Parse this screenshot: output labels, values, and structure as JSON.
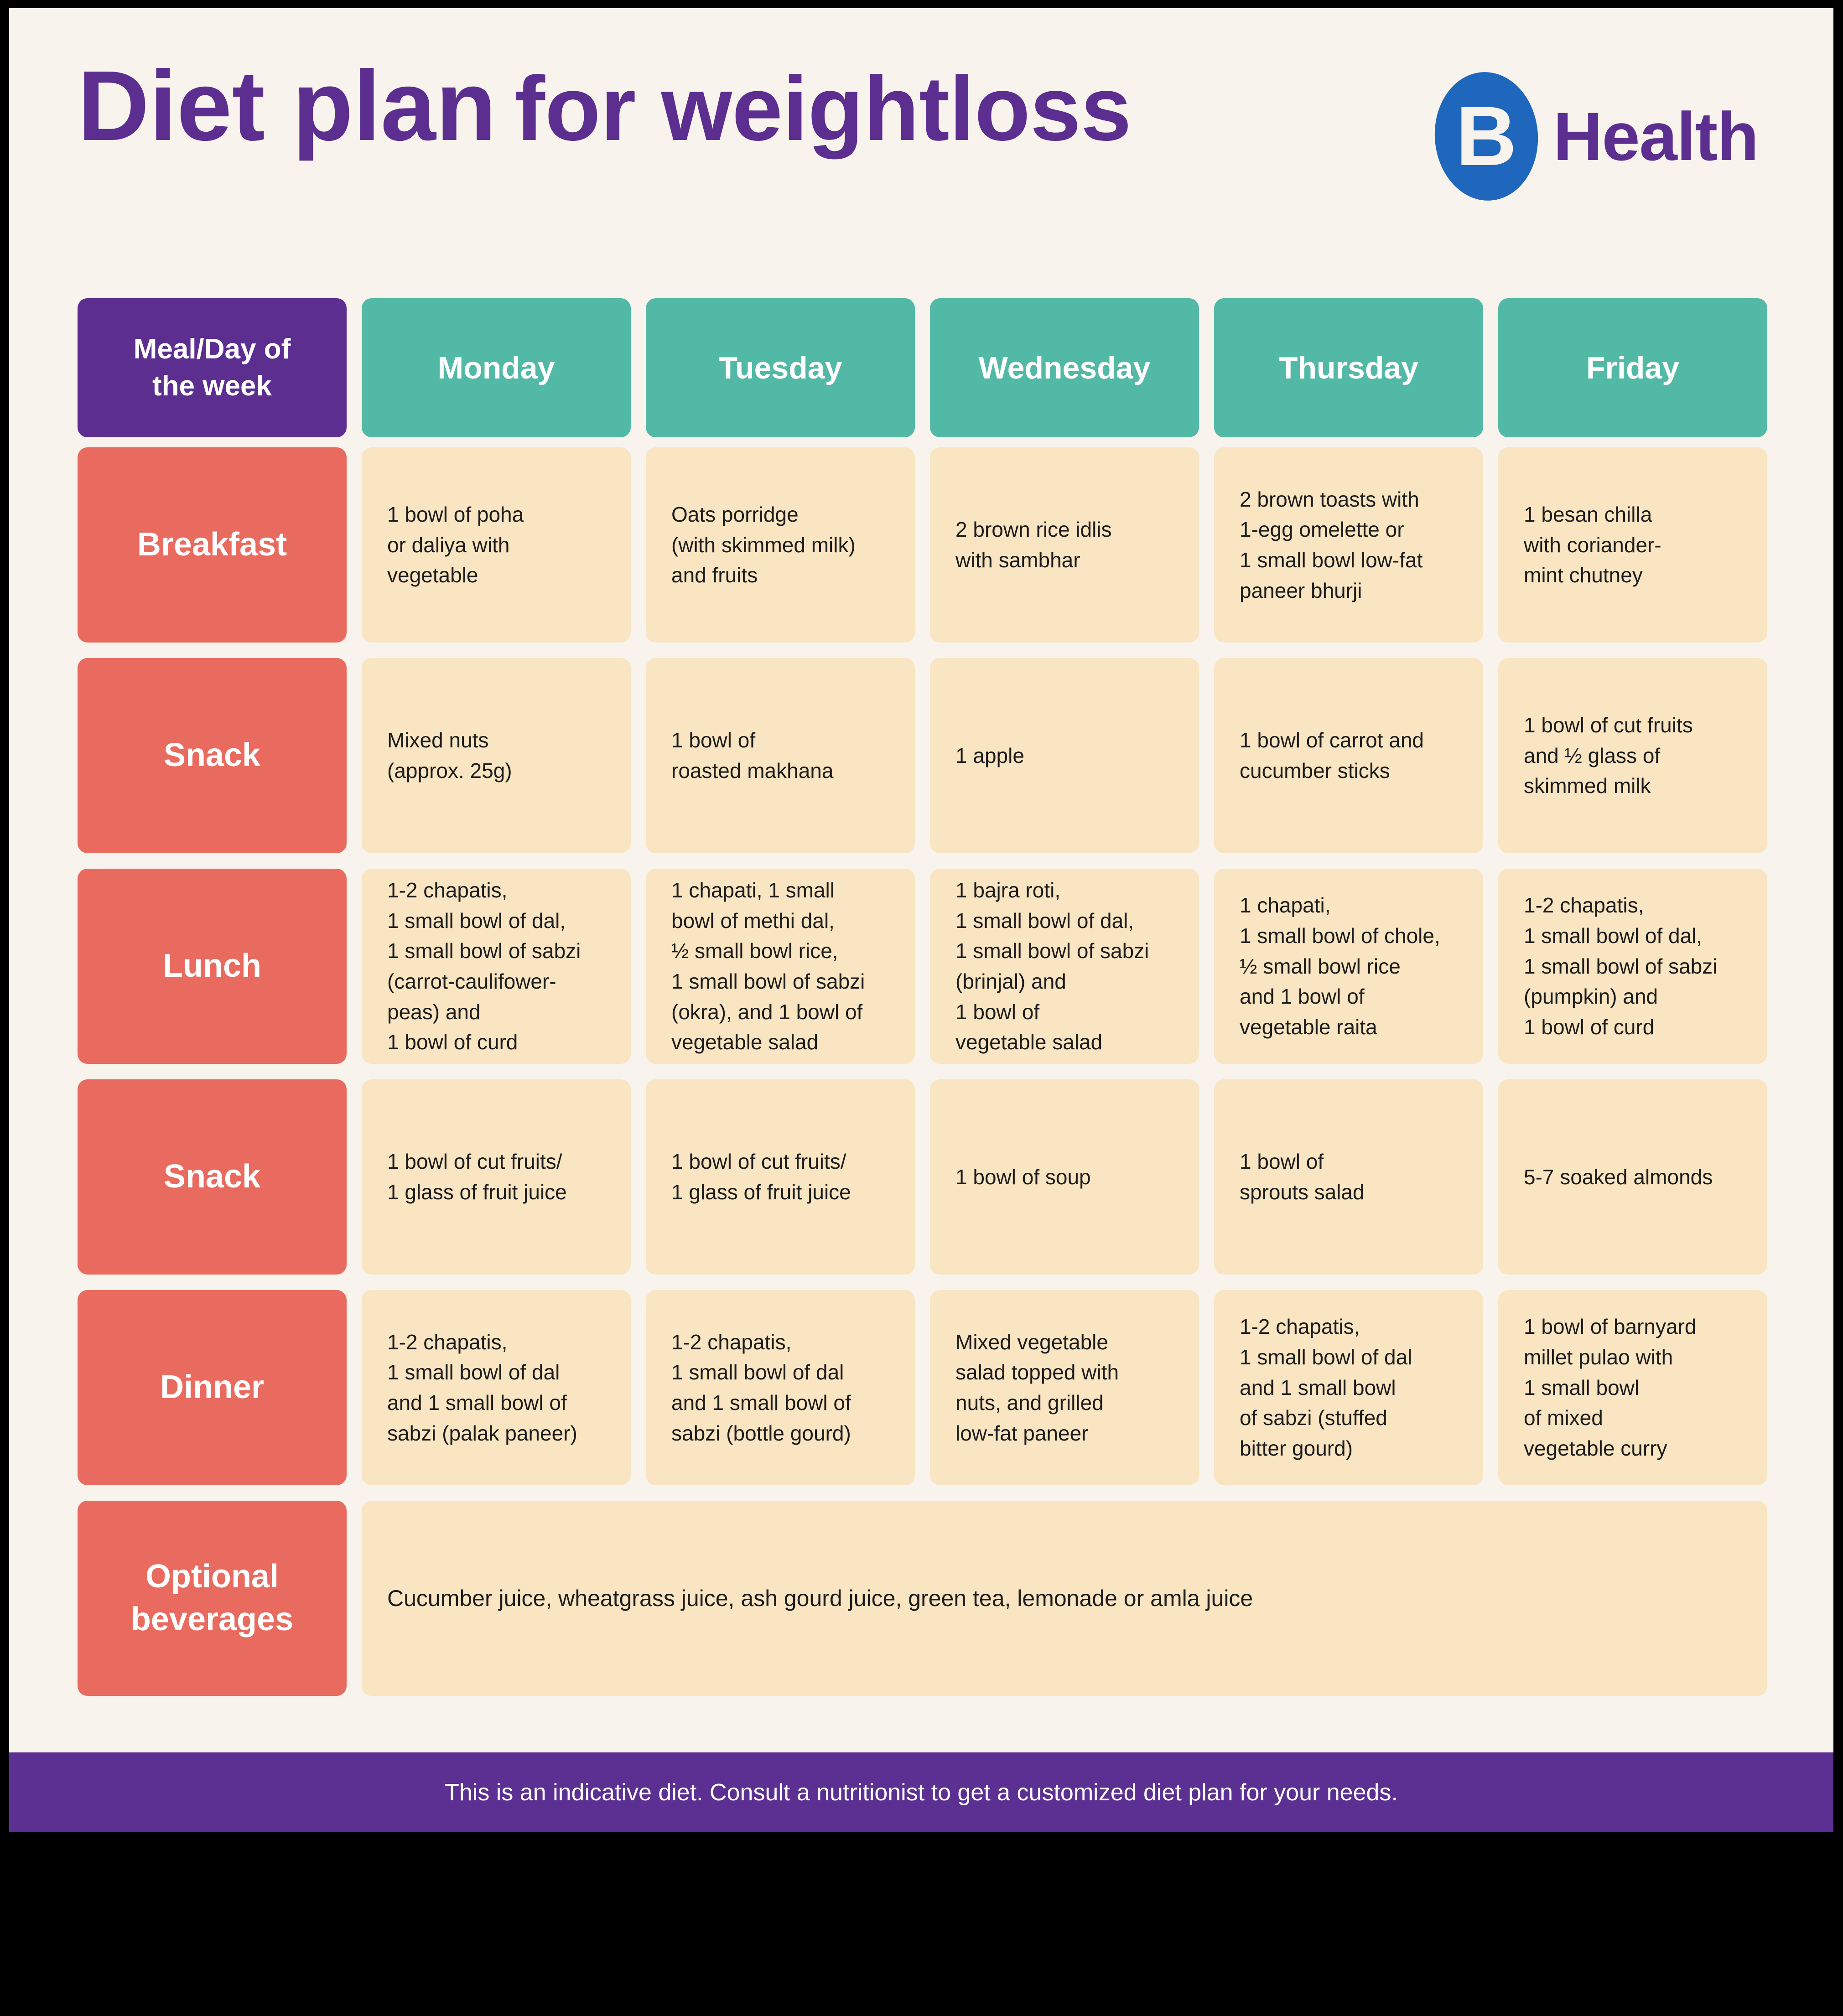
{
  "header": {
    "title_bold": "Diet plan",
    "title_regular": "for weightloss",
    "logo_letter": "B",
    "logo_text": "Health"
  },
  "colors": {
    "background_black": "#000000",
    "page_cream": "#F8F3EC",
    "accent_purple": "#5B2E90",
    "accent_teal": "#53B9A7",
    "accent_salmon": "#E96A5F",
    "cell_beige": "#F9E5C2",
    "logo_blue": "#1E67BD"
  },
  "table": {
    "corner_header": "Meal/Day of\nthe week",
    "day_headers": [
      "Monday",
      "Tuesday",
      "Wednesday",
      "Thursday",
      "Friday"
    ],
    "rows": [
      {
        "label": "Breakfast",
        "cells": [
          "1 bowl of poha\nor daliya with\nvegetable",
          "Oats porridge\n(with skimmed milk)\nand fruits",
          "2 brown rice idlis\nwith sambhar",
          "2 brown toasts with\n1-egg omelette or\n1 small bowl low-fat\npaneer bhurji",
          "1 besan chilla\nwith coriander-\nmint chutney"
        ]
      },
      {
        "label": "Snack",
        "cells": [
          "Mixed nuts\n(approx. 25g)",
          "1 bowl of\nroasted makhana",
          "1 apple",
          "1 bowl of carrot and\ncucumber sticks",
          "1 bowl of cut fruits\nand ½ glass of\nskimmed milk"
        ]
      },
      {
        "label": "Lunch",
        "cells": [
          "1-2 chapatis,\n1 small bowl of dal,\n1 small bowl of sabzi\n(carrot-caulifower-\npeas) and\n1 bowl of curd",
          "1 chapati, 1 small\nbowl of methi dal,\n½ small bowl rice,\n1 small bowl of sabzi\n(okra), and 1 bowl of\nvegetable salad",
          "1 bajra roti,\n1 small bowl of dal,\n1 small bowl of sabzi\n(brinjal) and\n1 bowl of\nvegetable salad",
          "1 chapati,\n1 small bowl of chole,\n½ small bowl rice\nand 1 bowl of\nvegetable raita",
          "1-2 chapatis,\n1 small bowl of dal,\n1 small bowl of sabzi\n(pumpkin) and\n1 bowl of curd"
        ]
      },
      {
        "label": "Snack",
        "cells": [
          "1 bowl of cut fruits/\n1 glass of fruit juice",
          "1 bowl of cut fruits/\n1 glass of fruit juice",
          "1 bowl of soup",
          "1 bowl of\nsprouts salad",
          "5-7 soaked almonds"
        ]
      },
      {
        "label": "Dinner",
        "cells": [
          "1-2 chapatis,\n1 small bowl of dal\nand 1 small bowl of\nsabzi (palak paneer)",
          "1-2 chapatis,\n1 small bowl of dal\nand 1 small bowl of\nsabzi (bottle gourd)",
          "Mixed vegetable\nsalad topped with\nnuts, and grilled\nlow-fat paneer",
          "1-2 chapatis,\n1 small bowl of dal\nand 1 small bowl\nof sabzi (stuffed\nbitter gourd)",
          "1 bowl of barnyard\nmillet pulao with\n1 small bowl\nof mixed\nvegetable curry"
        ]
      }
    ],
    "beverages": {
      "label": "Optional\nbeverages",
      "text": "Cucumber juice, wheatgrass juice, ash gourd juice, green tea, lemonade or amla juice"
    }
  },
  "footer": {
    "note": "This is an indicative diet. Consult a nutritionist to get a customized diet plan for your needs."
  }
}
